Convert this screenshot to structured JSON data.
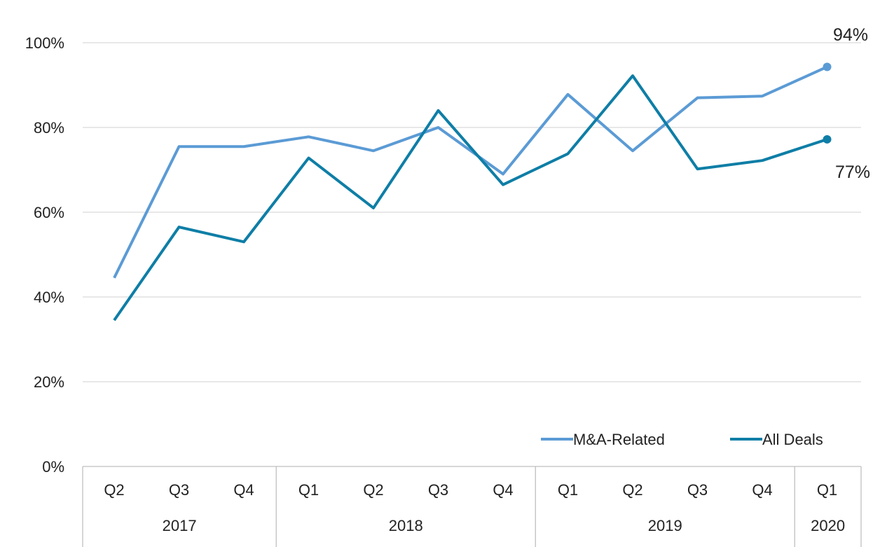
{
  "chart_data": {
    "type": "line",
    "categories": [
      "Q2",
      "Q3",
      "Q4",
      "Q1",
      "Q2",
      "Q3",
      "Q4",
      "Q1",
      "Q2",
      "Q3",
      "Q4",
      "Q1"
    ],
    "year_groups": [
      {
        "label": "2017",
        "count": 3
      },
      {
        "label": "2018",
        "count": 4
      },
      {
        "label": "2019",
        "count": 4
      },
      {
        "label": "2020",
        "count": 1
      }
    ],
    "series": [
      {
        "name": "M&A-Related",
        "color": "#5b9bd5",
        "values": [
          44.5,
          75.5,
          75.5,
          77.8,
          74.5,
          80.0,
          69.0,
          87.8,
          74.5,
          87.0,
          87.4,
          94.3
        ]
      },
      {
        "name": "All Deals",
        "color": "#0e7ea6",
        "values": [
          34.5,
          56.5,
          53.0,
          72.8,
          61.0,
          84.0,
          66.5,
          73.8,
          92.2,
          70.2,
          72.2,
          77.2
        ]
      }
    ],
    "end_labels": [
      "94%",
      "77%"
    ],
    "y_ticks": [
      "0%",
      "20%",
      "40%",
      "60%",
      "80%",
      "100%"
    ],
    "ylim": [
      0,
      100
    ],
    "grid": true,
    "legend_position": "bottom-right"
  }
}
